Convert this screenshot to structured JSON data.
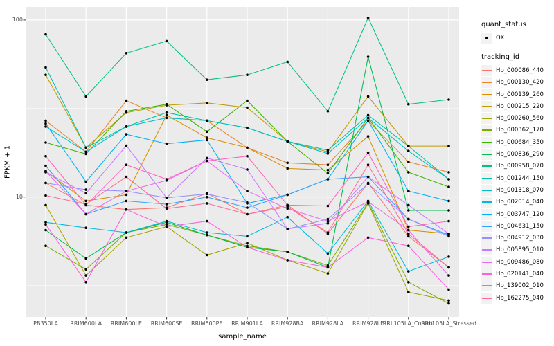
{
  "figure": {
    "colors": {
      "panel_bg": "#EBEBEB",
      "grid": "#FFFFFF",
      "point": "#000000",
      "axis_text": "#4D4D4D",
      "tick": "#333333",
      "legend_key_bg": "#F2F2F2"
    }
  },
  "legend": {
    "quant_status_title": "quant_status",
    "quant_status_items": [
      {
        "label": "OK",
        "icon": "black-point"
      }
    ],
    "tracking_id_title": "tracking_id"
  },
  "chart_data": {
    "type": "line",
    "title": "",
    "xlabel": "sample_name",
    "ylabel": "FPKM + 1",
    "y_scale": "log10",
    "grid": true,
    "legend_position": "right",
    "y_tick_labels": [
      "100",
      "10"
    ],
    "y_major_ticks": [
      100,
      10
    ],
    "y_minor_ticks": [
      31.623,
      3.162
    ],
    "y_domain": [
      2.1,
      118.6
    ],
    "x_categories": [
      "PB350LA",
      "RRIM600LA",
      "RRIM600LE",
      "RRIM600SE",
      "RRIM600PE",
      "RRIM901LA",
      "RRIM928BA",
      "RRIM928LA",
      "RRIM928LE",
      "RRII105LA_Control",
      "RRII105LA_Stressed"
    ],
    "point_color": "#000000",
    "series": [
      {
        "name": "Hb_000086_440",
        "color": "#F8766D",
        "values": [
          12,
          9,
          8.5,
          8.7,
          10.5,
          8,
          9,
          6.2,
          12,
          6,
          4
        ]
      },
      {
        "name": "Hb_000130_420",
        "color": "#EA8331",
        "values": [
          27,
          18,
          35,
          28,
          27,
          19,
          15.6,
          15.2,
          27,
          15.8,
          13.8
        ]
      },
      {
        "name": "Hb_000139_260",
        "color": "#D89000",
        "values": [
          14,
          9.5,
          10.3,
          29,
          21.6,
          19,
          14.5,
          14.2,
          22,
          6.5,
          6.2
        ]
      },
      {
        "name": "Hb_000215_220",
        "color": "#C09B00",
        "values": [
          49,
          19,
          30,
          33,
          34,
          32,
          20.6,
          18,
          37,
          19.4,
          19.4
        ]
      },
      {
        "name": "Hb_000260_560",
        "color": "#A3A500",
        "values": [
          9,
          3.6,
          5.9,
          6.8,
          4.7,
          5.5,
          4.4,
          3.7,
          9.2,
          2.9,
          2.6
        ]
      },
      {
        "name": "Hb_000362_170",
        "color": "#7CAE00",
        "values": [
          5.3,
          3.9,
          6.3,
          7,
          6.1,
          5.3,
          4.9,
          4.1,
          9.3,
          3.3,
          2.5
        ]
      },
      {
        "name": "Hb_000684_350",
        "color": "#39B600",
        "values": [
          20.3,
          17.5,
          30.5,
          33.4,
          23.4,
          35,
          20.6,
          13.6,
          28,
          13.8,
          11.4
        ]
      },
      {
        "name": "Hb_000836_290",
        "color": "#00BB4E",
        "values": [
          6.5,
          4.5,
          6.3,
          7.2,
          6.1,
          5.2,
          4.9,
          4,
          62,
          8.4,
          8.4
        ]
      },
      {
        "name": "Hb_000958_070",
        "color": "#00C087",
        "values": [
          83,
          37,
          65,
          76,
          46,
          49,
          58,
          30.5,
          103,
          33.4,
          35.5
        ]
      },
      {
        "name": "Hb_001244_150",
        "color": "#00C1AB",
        "values": [
          54,
          19,
          25,
          30,
          27,
          24.6,
          20.6,
          18.4,
          29,
          19.4,
          12.6
        ]
      },
      {
        "name": "Hb_001318_070",
        "color": "#00BFC4",
        "values": [
          25,
          18,
          25,
          28,
          27,
          24.6,
          20.6,
          17.6,
          28,
          18.2,
          12.6
        ]
      },
      {
        "name": "Hb_002014_040",
        "color": "#00BAE0",
        "values": [
          7.2,
          6.7,
          6.3,
          7.3,
          6.3,
          6,
          7.7,
          4.8,
          9.5,
          3.8,
          4.6
        ]
      },
      {
        "name": "Hb_003747_120",
        "color": "#00B0F6",
        "values": [
          26,
          12.2,
          22.6,
          20,
          21,
          9.2,
          10.3,
          12.6,
          27,
          10.8,
          9.5
        ]
      },
      {
        "name": "Hb_004631_150",
        "color": "#35A2FF",
        "values": [
          15,
          8,
          9.5,
          9.1,
          10,
          8.7,
          10.3,
          12.6,
          13,
          7.5,
          6.1
        ]
      },
      {
        "name": "Hb_004912_030",
        "color": "#9590FF",
        "values": [
          12,
          11,
          10.8,
          9.9,
          10.4,
          9.3,
          6.6,
          7.5,
          11.9,
          7.5,
          6
        ]
      },
      {
        "name": "Hb_005895_010",
        "color": "#C77CFF",
        "values": [
          13.8,
          10.5,
          19.5,
          9.9,
          16.6,
          14.3,
          6.6,
          7.1,
          13,
          9,
          6.2
        ]
      },
      {
        "name": "Hb_009486_080",
        "color": "#E76BF3",
        "values": [
          14,
          8,
          10.8,
          12.4,
          16,
          10.8,
          8.6,
          7.3,
          9.4,
          6.5,
          3.6
        ]
      },
      {
        "name": "Hb_020141_040",
        "color": "#FA62DB",
        "values": [
          7,
          3.3,
          8.5,
          6.8,
          7.3,
          5.2,
          4.4,
          4,
          5.9,
          5.3,
          3
        ]
      },
      {
        "name": "Hb_139002_010",
        "color": "#FF62BC",
        "values": [
          17,
          9,
          15.2,
          12.6,
          16,
          17,
          9,
          8.9,
          17.8,
          6.8,
          7.3
        ]
      },
      {
        "name": "Hb_162275_040",
        "color": "#FF6A98",
        "values": [
          10.2,
          9.1,
          13,
          8.6,
          9.2,
          8,
          8.8,
          6.3,
          15.2,
          6.2,
          4
        ]
      }
    ]
  }
}
